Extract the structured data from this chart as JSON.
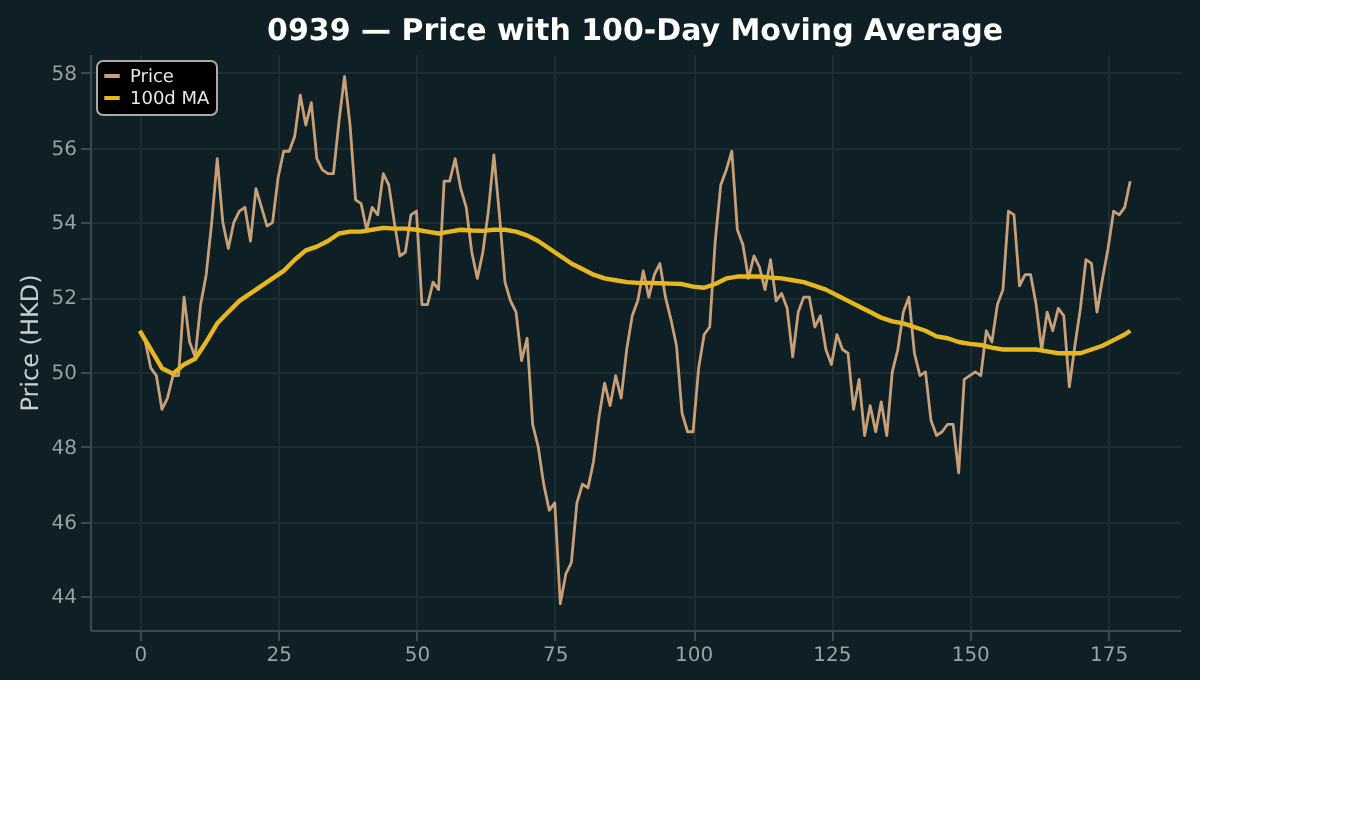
{
  "chart_data": {
    "type": "line",
    "title": "0939 — Price with 100-Day Moving Average",
    "ylabel": "Price (HKD)",
    "xlim": [
      -9,
      188
    ],
    "xticks": [
      0,
      25,
      50,
      75,
      100,
      125,
      150,
      175
    ],
    "ylim": [
      43.1,
      58.5
    ],
    "yticks": [
      44,
      46,
      48,
      50,
      52,
      54,
      56,
      58
    ],
    "grid": true,
    "legend": "top left",
    "line_style": "solid",
    "x": [
      0,
      1,
      2,
      3,
      4,
      5,
      6,
      7,
      8,
      9,
      10,
      11,
      12,
      13,
      14,
      15,
      16,
      17,
      18,
      19,
      20,
      21,
      22,
      23,
      24,
      25,
      26,
      27,
      28,
      29,
      30,
      31,
      32,
      33,
      34,
      35,
      36,
      37,
      38,
      39,
      40,
      41,
      42,
      43,
      44,
      45,
      46,
      47,
      48,
      49,
      50,
      51,
      52,
      53,
      54,
      55,
      56,
      57,
      58,
      59,
      60,
      61,
      62,
      63,
      64,
      65,
      66,
      67,
      68,
      69,
      70,
      71,
      72,
      73,
      74,
      75,
      76,
      77,
      78,
      79,
      80,
      81,
      82,
      83,
      84,
      85,
      86,
      87,
      88,
      89,
      90,
      91,
      92,
      93,
      94,
      95,
      96,
      97,
      98,
      99,
      100,
      101,
      102,
      103,
      104,
      105,
      106,
      107,
      108,
      109,
      110,
      111,
      112,
      113,
      114,
      115,
      116,
      117,
      118,
      119,
      120,
      121,
      122,
      123,
      124,
      125,
      126,
      127,
      128,
      129,
      130,
      131,
      132,
      133,
      134,
      135,
      136,
      137,
      138,
      139,
      140,
      141,
      142,
      143,
      144,
      145,
      146,
      147,
      148,
      149,
      150,
      151,
      152,
      153,
      154,
      155,
      156,
      157,
      158,
      159,
      160,
      161,
      162,
      163,
      164,
      165,
      166,
      167,
      168,
      169,
      170,
      171,
      172,
      173,
      174,
      175,
      176,
      177,
      178,
      179
    ],
    "series": [
      {
        "name": "Price",
        "color": "#c8a078",
        "values": [
          51.1,
          50.8,
          50.1,
          49.9,
          49.0,
          49.3,
          49.9,
          49.9,
          52.0,
          50.8,
          50.4,
          51.8,
          52.6,
          54.0,
          55.7,
          54.0,
          53.3,
          54.0,
          54.3,
          54.4,
          53.5,
          54.9,
          54.4,
          53.9,
          54.0,
          55.2,
          55.9,
          55.9,
          56.3,
          57.4,
          56.6,
          57.2,
          55.7,
          55.4,
          55.3,
          55.3,
          56.7,
          57.9,
          56.6,
          54.6,
          54.5,
          53.8,
          54.4,
          54.2,
          55.3,
          55.0,
          54.0,
          53.1,
          53.2,
          54.2,
          54.3,
          51.8,
          51.8,
          52.4,
          52.2,
          55.1,
          55.1,
          55.7,
          54.9,
          54.4,
          53.2,
          52.5,
          53.2,
          54.3,
          55.8,
          54.2,
          52.4,
          51.9,
          51.6,
          50.3,
          50.9,
          48.6,
          48.0,
          47.0,
          46.3,
          46.5,
          43.8,
          44.6,
          44.9,
          46.5,
          47.0,
          46.9,
          47.6,
          48.8,
          49.7,
          49.1,
          49.9,
          49.3,
          50.6,
          51.5,
          51.9,
          52.7,
          52.0,
          52.6,
          52.9,
          52.0,
          51.4,
          50.7,
          48.9,
          48.4,
          48.4,
          50.1,
          51.0,
          51.2,
          53.5,
          55.0,
          55.4,
          55.9,
          53.8,
          53.4,
          52.5,
          53.1,
          52.8,
          52.2,
          53.0,
          51.9,
          52.1,
          51.7,
          50.4,
          51.6,
          52.0,
          52.0,
          51.2,
          51.5,
          50.6,
          50.2,
          51.0,
          50.6,
          50.5,
          49.0,
          49.8,
          48.3,
          49.1,
          48.4,
          49.2,
          48.3,
          50.0,
          50.6,
          51.6,
          52.0,
          50.5,
          49.9,
          50.0,
          48.7,
          48.3,
          48.4,
          48.6,
          48.6,
          47.3,
          49.8,
          49.9,
          50.0,
          49.9,
          51.1,
          50.8,
          51.8,
          52.2,
          54.3,
          54.2,
          52.3,
          52.6,
          52.6,
          51.8,
          50.6,
          51.6,
          51.1,
          51.7,
          51.5,
          49.6,
          50.7,
          51.7,
          53.0,
          52.9,
          51.6,
          52.5,
          53.3,
          54.3,
          54.2,
          54.4,
          55.1
        ]
      },
      {
        "name": "100d MA",
        "color": "#e6b81e",
        "x": [
          0,
          2,
          4,
          6,
          8,
          10,
          12,
          14,
          16,
          18,
          20,
          22,
          24,
          26,
          28,
          30,
          32,
          34,
          36,
          38,
          40,
          42,
          44,
          46,
          48,
          50,
          52,
          54,
          56,
          58,
          60,
          62,
          64,
          66,
          68,
          70,
          72,
          74,
          76,
          78,
          80,
          82,
          84,
          86,
          88,
          90,
          92,
          94,
          96,
          98,
          100,
          102,
          104,
          106,
          108,
          110,
          112,
          114,
          116,
          118,
          120,
          122,
          124,
          126,
          128,
          130,
          132,
          134,
          136,
          138,
          140,
          142,
          144,
          146,
          148,
          150,
          152,
          154,
          156,
          158,
          160,
          162,
          164,
          166,
          168,
          170,
          172,
          174,
          176,
          178,
          179
        ],
        "values": [
          51.1,
          50.6,
          50.1,
          49.95,
          50.2,
          50.35,
          50.8,
          51.3,
          51.6,
          51.9,
          52.1,
          52.3,
          52.5,
          52.7,
          53.0,
          53.25,
          53.35,
          53.5,
          53.7,
          53.75,
          53.75,
          53.8,
          53.85,
          53.83,
          53.83,
          53.8,
          53.75,
          53.7,
          53.75,
          53.8,
          53.78,
          53.77,
          53.8,
          53.8,
          53.75,
          53.65,
          53.5,
          53.3,
          53.1,
          52.9,
          52.75,
          52.6,
          52.5,
          52.45,
          52.4,
          52.38,
          52.38,
          52.37,
          52.36,
          52.35,
          52.28,
          52.25,
          52.35,
          52.5,
          52.55,
          52.55,
          52.55,
          52.52,
          52.5,
          52.45,
          52.4,
          52.3,
          52.2,
          52.05,
          51.9,
          51.75,
          51.6,
          51.45,
          51.35,
          51.3,
          51.2,
          51.1,
          50.95,
          50.9,
          50.8,
          50.75,
          50.72,
          50.65,
          50.6,
          50.6,
          50.6,
          50.6,
          50.55,
          50.5,
          50.5,
          50.5,
          50.6,
          50.7,
          50.85,
          51.0,
          51.1
        ]
      }
    ]
  }
}
